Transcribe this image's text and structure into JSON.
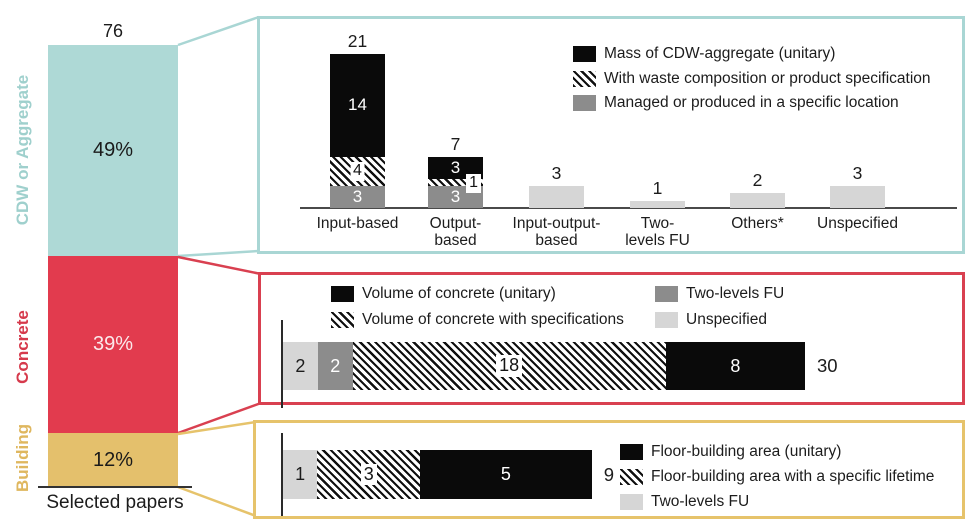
{
  "chart_data": [
    {
      "id": "overview",
      "type": "bar",
      "orientation": "vertical",
      "stacked": true,
      "total": 76,
      "total_label": "76",
      "xlabel": "Selected papers",
      "categories": [
        "CDW or Aggregate",
        "Concrete",
        "Building"
      ],
      "values_pct": [
        49,
        39,
        12
      ],
      "pct_labels": [
        "49%",
        "39%",
        "12%"
      ],
      "colors": [
        "#aed9d6",
        "#e23b4e",
        "#e4c06c"
      ],
      "pct_text_colors": [
        "#1a1a1a",
        "#fbe9eb",
        "#1a1a1a"
      ],
      "category_label_colors": [
        "#9fd0cd",
        "#d63a4c",
        "#dfb75f"
      ]
    },
    {
      "id": "cdw-or-aggregate",
      "type": "bar",
      "orientation": "vertical",
      "stacked": true,
      "border_color": "#a9d6d4",
      "legend": [
        {
          "label": "Mass of CDW-aggregate (unitary)",
          "style": "black"
        },
        {
          "label": "With waste composition or product specification",
          "style": "hatch"
        },
        {
          "label": "Managed or produced in a specific location",
          "style": "gray"
        }
      ],
      "categories": [
        "Input-based",
        "Output-based",
        "Input-output-based",
        "Two-levels FU",
        "Others*",
        "Unspecified"
      ],
      "category_label_lines": [
        [
          "Input-based"
        ],
        [
          "Output-",
          "based"
        ],
        [
          "Input-output-",
          "based"
        ],
        [
          "Two-",
          "levels FU"
        ],
        [
          "Others*"
        ],
        [
          "Unspecified"
        ]
      ],
      "totals": [
        21,
        7,
        3,
        1,
        2,
        3
      ],
      "series": [
        {
          "name": "Mass of CDW-aggregate (unitary)",
          "style": "black",
          "in_legend": true,
          "values": [
            14,
            3,
            0,
            0,
            0,
            0
          ]
        },
        {
          "name": "With waste composition or product specification",
          "style": "hatch",
          "in_legend": true,
          "values": [
            4,
            1,
            0,
            0,
            0,
            0
          ]
        },
        {
          "name": "Managed or produced in a specific location",
          "style": "gray",
          "in_legend": true,
          "values": [
            3,
            3,
            0,
            0,
            0,
            0
          ]
        },
        {
          "name": "",
          "style": "light",
          "in_legend": false,
          "values": [
            0,
            0,
            3,
            1,
            2,
            3
          ]
        }
      ]
    },
    {
      "id": "concrete",
      "type": "bar",
      "orientation": "horizontal",
      "stacked": true,
      "border_color": "#d94050",
      "total": 30,
      "total_label": "30",
      "segments": [
        {
          "name": "Unspecified",
          "value": 2,
          "label": "2",
          "style": "light"
        },
        {
          "name": "Two-levels FU",
          "value": 2,
          "label": "2",
          "style": "gray"
        },
        {
          "name": "Volume of concrete with specifications",
          "value": 18,
          "label": "18",
          "style": "hatch"
        },
        {
          "name": "Volume of concrete (unitary)",
          "value": 8,
          "label": "8",
          "style": "black"
        }
      ],
      "legend_columns": [
        [
          {
            "label": "Volume of concrete (unitary)",
            "style": "black"
          },
          {
            "label": "Volume of concrete with specifications",
            "style": "hatch"
          }
        ],
        [
          {
            "label": "Two-levels FU",
            "style": "gray"
          },
          {
            "label": "Unspecified",
            "style": "light"
          }
        ]
      ]
    },
    {
      "id": "building",
      "type": "bar",
      "orientation": "horizontal",
      "stacked": true,
      "border_color": "#e6c36b",
      "total": 9,
      "total_label": "9",
      "segments": [
        {
          "name": "Two-levels FU",
          "value": 1,
          "label": "1",
          "style": "light"
        },
        {
          "name": "Floor-building area with a specific lifetime",
          "value": 3,
          "label": "3",
          "style": "hatch"
        },
        {
          "name": "Floor-building area (unitary)",
          "value": 5,
          "label": "5",
          "style": "black"
        }
      ],
      "legend": [
        {
          "label": "Floor-building area (unitary)",
          "style": "black"
        },
        {
          "label": "Floor-building area with a specific lifetime",
          "style": "hatch"
        },
        {
          "label": "Two-levels FU",
          "style": "light"
        }
      ]
    }
  ]
}
